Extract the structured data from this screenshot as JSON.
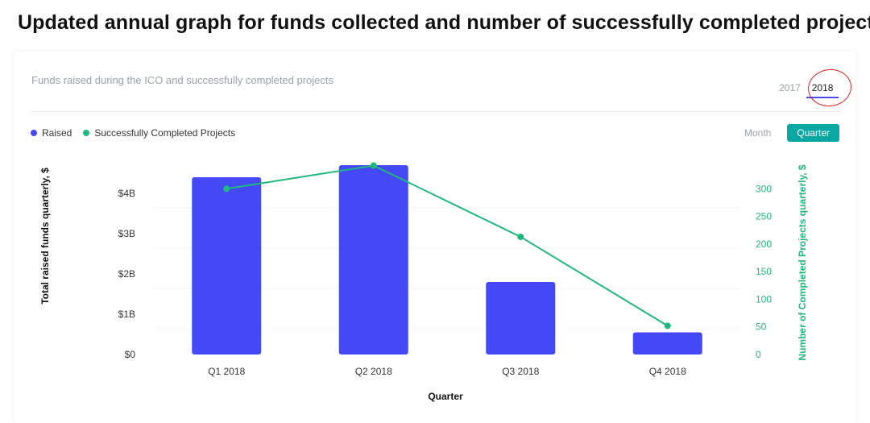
{
  "page": {
    "title": "Updated annual graph for funds collected and number of successfully completed projects"
  },
  "card": {
    "subtitle": "Funds raised during the ICO and successfully completed projects",
    "year_tabs": [
      {
        "label": "2017",
        "active": false
      },
      {
        "label": "2018",
        "active": true
      }
    ],
    "period_toggle": [
      {
        "label": "Month",
        "active": false
      },
      {
        "label": "Quarter",
        "active": true
      }
    ]
  },
  "colors": {
    "raised": "#4449f5",
    "projects": "#1fb97b",
    "accent": "#0ba7a3"
  },
  "chart_data": {
    "type": "bar",
    "categories": [
      "Q1 2018",
      "Q2 2018",
      "Q3 2018",
      "Q4 2018"
    ],
    "series": [
      {
        "name": "Raised",
        "type": "bar",
        "axis": "left",
        "values": [
          4.4,
          4.7,
          1.8,
          0.55
        ]
      },
      {
        "name": "Successfully Completed Projects",
        "type": "line",
        "axis": "right",
        "values": [
          300,
          342,
          213,
          52
        ]
      }
    ],
    "xlabel": "Quarter",
    "ylabel": "Total raised funds quarterly, $",
    "y2label": "Number of Completed Projects quarterly, $",
    "ylim": [
      0,
      4.8
    ],
    "y2lim": [
      0,
      350
    ],
    "yticks": [
      {
        "value": 0,
        "label": "$0"
      },
      {
        "value": 1,
        "label": "$1B"
      },
      {
        "value": 2,
        "label": "$2B"
      },
      {
        "value": 3,
        "label": "$3B"
      },
      {
        "value": 4,
        "label": "$4B"
      }
    ],
    "y2ticks": [
      {
        "value": 0,
        "label": "0"
      },
      {
        "value": 50,
        "label": "50"
      },
      {
        "value": 100,
        "label": "100"
      },
      {
        "value": 150,
        "label": "150"
      },
      {
        "value": 200,
        "label": "200"
      },
      {
        "value": 250,
        "label": "250"
      },
      {
        "value": 300,
        "label": "300"
      }
    ],
    "legend": "top-left",
    "grid": true
  }
}
